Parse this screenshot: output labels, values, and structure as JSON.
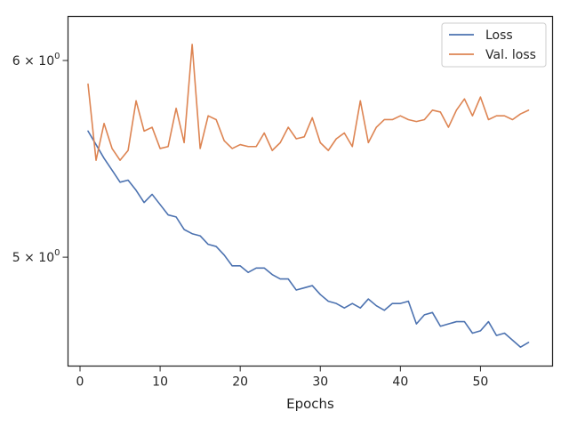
{
  "chart_data": {
    "type": "line",
    "title": "",
    "xlabel": "Epochs",
    "ylabel": "",
    "xlim": [
      -1.5,
      59
    ],
    "ylim": [
      4.52,
      6.25
    ],
    "yscale": "log",
    "xticks": [
      0,
      10,
      20,
      30,
      40,
      50
    ],
    "xtick_labels": [
      "0",
      "10",
      "20",
      "30",
      "40",
      "50"
    ],
    "yticks": [
      5,
      6
    ],
    "ytick_labels": {
      "5": {
        "base": "5",
        "mult": "×",
        "exp_base": "10",
        "exp": "0"
      },
      "6": {
        "base": "6",
        "mult": "×",
        "exp_base": "10",
        "exp": "0"
      }
    },
    "legend": {
      "position": "top-right"
    },
    "grid": false,
    "x": [
      1,
      2,
      3,
      4,
      5,
      6,
      7,
      8,
      9,
      10,
      11,
      12,
      13,
      14,
      15,
      16,
      17,
      18,
      19,
      20,
      21,
      22,
      23,
      24,
      25,
      26,
      27,
      28,
      29,
      30,
      31,
      32,
      33,
      34,
      35,
      36,
      37,
      38,
      39,
      40,
      41,
      42,
      43,
      44,
      45,
      46,
      47,
      48,
      49,
      50,
      51,
      52,
      53,
      54,
      55,
      56
    ],
    "series": [
      {
        "name": "Loss",
        "color": "#4c72b0",
        "values": [
          5.62,
          5.55,
          5.48,
          5.42,
          5.36,
          5.37,
          5.32,
          5.26,
          5.3,
          5.25,
          5.2,
          5.19,
          5.13,
          5.11,
          5.1,
          5.06,
          5.05,
          5.01,
          4.96,
          4.96,
          4.93,
          4.95,
          4.95,
          4.92,
          4.9,
          4.9,
          4.85,
          4.86,
          4.87,
          4.83,
          4.8,
          4.79,
          4.77,
          4.79,
          4.77,
          4.81,
          4.78,
          4.76,
          4.79,
          4.79,
          4.8,
          4.7,
          4.74,
          4.75,
          4.69,
          4.7,
          4.71,
          4.71,
          4.66,
          4.67,
          4.71,
          4.65,
          4.66,
          4.63,
          4.6,
          4.62
        ]
      },
      {
        "name": "Val. loss",
        "color": "#dd8452",
        "values": [
          5.87,
          5.47,
          5.66,
          5.53,
          5.47,
          5.52,
          5.78,
          5.62,
          5.64,
          5.53,
          5.54,
          5.74,
          5.56,
          6.09,
          5.53,
          5.7,
          5.68,
          5.57,
          5.53,
          5.55,
          5.54,
          5.54,
          5.61,
          5.52,
          5.56,
          5.64,
          5.58,
          5.59,
          5.69,
          5.56,
          5.52,
          5.58,
          5.61,
          5.54,
          5.78,
          5.56,
          5.64,
          5.68,
          5.68,
          5.7,
          5.68,
          5.67,
          5.68,
          5.73,
          5.72,
          5.64,
          5.73,
          5.79,
          5.7,
          5.8,
          5.68,
          5.7,
          5.7,
          5.68,
          5.71,
          5.73
        ]
      }
    ]
  }
}
